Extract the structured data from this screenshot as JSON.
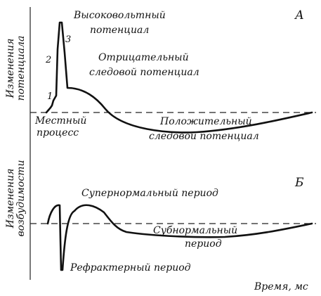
{
  "panel_a": {
    "letter": "А",
    "ylabel_line1": "Изменения",
    "ylabel_line2": "потенциала",
    "spike_label_line1": "Высоковольтный",
    "spike_label_line2": "потенциал",
    "negative_trace_line1": "Отрицательный",
    "negative_trace_line2": "следовой потенциал",
    "positive_trace_line1": "Положительный",
    "positive_trace_line2": "следовой потенциал",
    "local_process_line1": "Местный",
    "local_process_line2": "процесс",
    "phase_1": "1",
    "phase_2": "2",
    "phase_3": "3"
  },
  "panel_b": {
    "letter": "Б",
    "ylabel_line1": "Изменения",
    "ylabel_line2": "возбудимости",
    "supernormal": "Супернормальный период",
    "subnormal_line1": "Субнормальный",
    "subnormal_line2": "период",
    "refractory": "Рефрактерный период"
  },
  "xlabel": "Время, мс"
}
